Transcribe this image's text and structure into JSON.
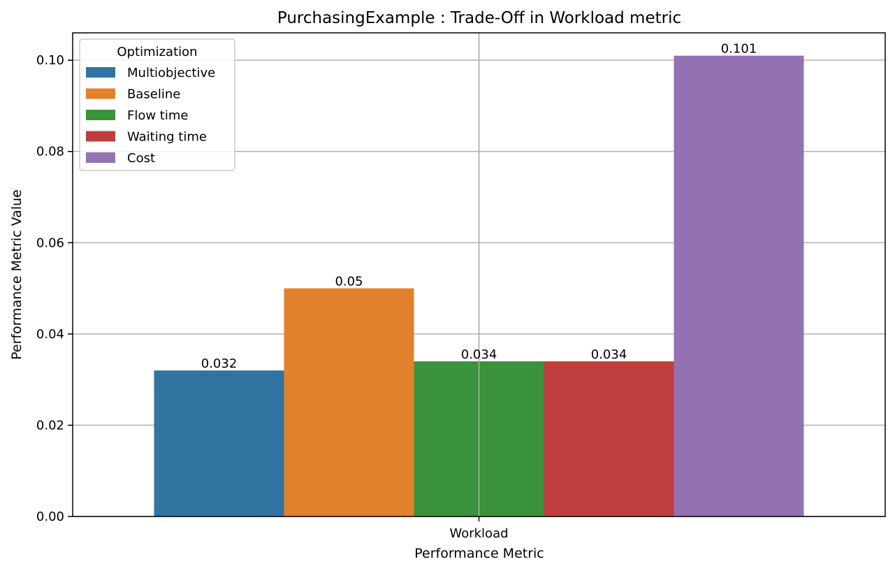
{
  "chart_data": {
    "type": "bar",
    "title": "PurchasingExample : Trade-Off in Workload metric",
    "xlabel": "Performance Metric",
    "ylabel": "Performance Metric Value",
    "categories": [
      "Workload"
    ],
    "ylim": [
      0,
      0.106
    ],
    "yticks": [
      0.0,
      0.02,
      0.04,
      0.06,
      0.08,
      0.1
    ],
    "ytick_labels": [
      "0.00",
      "0.02",
      "0.04",
      "0.06",
      "0.08",
      "0.10"
    ],
    "grid": true,
    "legend": {
      "title": "Optimization",
      "position": "upper-left"
    },
    "series": [
      {
        "name": "Multiobjective",
        "values": [
          0.032
        ],
        "label": "0.032",
        "color": "#3274a1"
      },
      {
        "name": "Baseline",
        "values": [
          0.05
        ],
        "label": "0.05",
        "color": "#e1812c"
      },
      {
        "name": "Flow time",
        "values": [
          0.034
        ],
        "label": "0.034",
        "color": "#3a923a"
      },
      {
        "name": "Waiting time",
        "values": [
          0.034
        ],
        "label": "0.034",
        "color": "#c03d3e"
      },
      {
        "name": "Cost",
        "values": [
          0.101
        ],
        "label": "0.101",
        "color": "#9372b2"
      }
    ]
  }
}
